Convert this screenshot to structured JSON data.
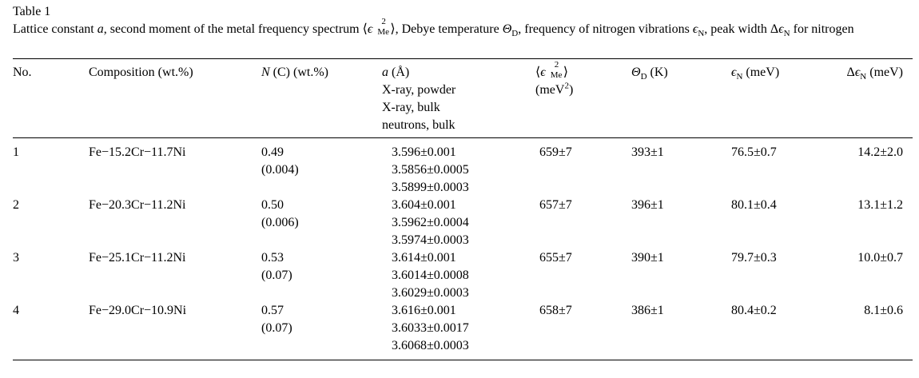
{
  "caption": {
    "label": "Table 1",
    "text_parts": [
      "Lattice constant ",
      "a",
      ", second moment of the metal frequency spectrum ⟨",
      "ϵ",
      "2",
      "Me",
      "⟩, Debye temperature ",
      "Θ",
      "D",
      ", frequency of nitrogen vibrations ",
      "ϵ",
      "N",
      ", peak width Δ",
      "ϵ",
      "N",
      " for nitrogen"
    ]
  },
  "headers": {
    "no": "No.",
    "composition": "Composition (wt.%)",
    "nc_sym": "N",
    "nc_rest": " (C) (wt.%)",
    "a_sym": "a",
    "a_unit": " (Å)",
    "a_sub": [
      "X-ray, powder",
      "X-ray, bulk",
      "neutrons, bulk"
    ],
    "e2_open": "⟨",
    "e2_sym": "ϵ",
    "e2_sup": "2",
    "e2_sub": "Me",
    "e2_close": "⟩",
    "e2_unit_pre": "(meV",
    "e2_unit_sup": "2",
    "e2_unit_post": ")",
    "theta_sym": "Θ",
    "theta_sub": "D",
    "theta_unit": " (K)",
    "en_sym": "ϵ",
    "en_sub": "N",
    "en_unit": " (meV)",
    "den_pre": "Δ",
    "den_sym": "ϵ",
    "den_sub": "N",
    "den_unit": " (meV)"
  },
  "rows": [
    {
      "no": "1",
      "composition": "Fe−15.2Cr−11.7Ni",
      "nc": [
        "0.49",
        "(0.004)"
      ],
      "a": [
        "3.596±0.001",
        "3.5856±0.0005",
        "3.5899±0.0003"
      ],
      "e2": "659±7",
      "theta": "393±1",
      "en": "76.5±0.7",
      "den": "14.2±2.0"
    },
    {
      "no": "2",
      "composition": "Fe−20.3Cr−11.2Ni",
      "nc": [
        "0.50",
        "(0.006)"
      ],
      "a": [
        "3.604±0.001",
        "3.5962±0.0004",
        "3.5974±0.0003"
      ],
      "e2": "657±7",
      "theta": "396±1",
      "en": "80.1±0.4",
      "den": "13.1±1.2"
    },
    {
      "no": "3",
      "composition": "Fe−25.1Cr−11.2Ni",
      "nc": [
        "0.53",
        "(0.07)"
      ],
      "a": [
        "3.614±0.001",
        "3.6014±0.0008",
        "3.6029±0.0003"
      ],
      "e2": "655±7",
      "theta": "390±1",
      "en": "79.7±0.3",
      "den": "10.0±0.7"
    },
    {
      "no": "4",
      "composition": "Fe−29.0Cr−10.9Ni",
      "nc": [
        "0.57",
        "(0.07)"
      ],
      "a": [
        "3.616±0.001",
        "3.6033±0.0017",
        "3.6068±0.0003"
      ],
      "e2": "658±7",
      "theta": "386±1",
      "en": "80.4±0.2",
      "den": "8.1±0.6"
    }
  ]
}
